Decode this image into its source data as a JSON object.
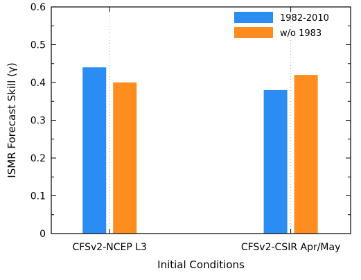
{
  "chart_data": {
    "type": "bar",
    "categories": [
      "CFSv2-NCEP L3",
      "CFSv2-CSIR Apr/May"
    ],
    "series": [
      {
        "name": "1982-2010",
        "values": [
          0.44,
          0.38
        ],
        "color": "#2b8cf4"
      },
      {
        "name": "w/o 1983",
        "values": [
          0.4,
          0.42
        ],
        "color": "#ff8c1f"
      }
    ],
    "xlabel": "Initial Conditions",
    "ylabel": "ISMR Forecast Skill (γ)",
    "ylim": [
      0,
      0.6
    ],
    "yticks": [
      "0",
      "0.1",
      "0.2",
      "0.3",
      "0.4",
      "0.5",
      "0.6"
    ],
    "grid": "vertical dotted at categories",
    "legend_position": "top-right"
  }
}
